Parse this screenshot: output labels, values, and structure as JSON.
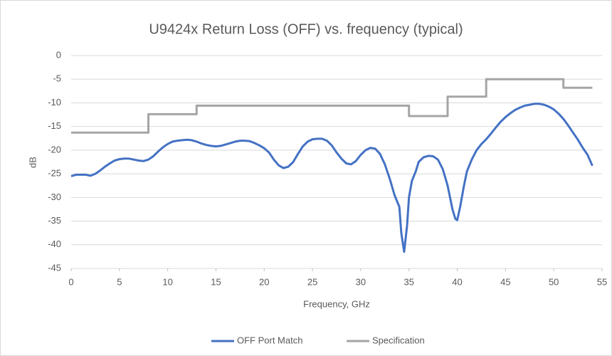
{
  "chart_data": {
    "type": "line",
    "title": "U9424x Return Loss (OFF) vs. frequency (typical)",
    "x_label": "Frequency, GHz",
    "y_label": "dB",
    "xlim": [
      0,
      55
    ],
    "xticks": [
      0,
      5,
      10,
      15,
      20,
      25,
      30,
      35,
      40,
      45,
      50,
      55
    ],
    "ylim": [
      -45,
      0
    ],
    "yticks": [
      0,
      -5,
      -10,
      -15,
      -20,
      -25,
      -30,
      -35,
      -40,
      -45
    ],
    "grid": true,
    "legend": "bottom",
    "series": [
      {
        "name": "OFF Port Match",
        "color": "#4472c4",
        "x": [
          0,
          0.5,
          1,
          1.5,
          2,
          2.5,
          3,
          3.5,
          4,
          4.5,
          5,
          5.5,
          6,
          6.5,
          7,
          7.5,
          8,
          8.5,
          9,
          9.5,
          10,
          10.5,
          11,
          11.5,
          12,
          12.5,
          13,
          13.5,
          14,
          14.5,
          15,
          15.5,
          16,
          16.5,
          17,
          17.5,
          18,
          18.5,
          19,
          19.5,
          20,
          20.5,
          21,
          21.5,
          22,
          22.5,
          23,
          23.5,
          24,
          24.5,
          25,
          25.5,
          26,
          26.5,
          27,
          27.5,
          28,
          28.5,
          29,
          29.5,
          30,
          30.5,
          31,
          31.5,
          32,
          32.5,
          33,
          33.5,
          34,
          34.2,
          34.5,
          34.8,
          35,
          35.3,
          35.7,
          36,
          36.5,
          37,
          37.5,
          38,
          38.5,
          39,
          39.5,
          39.8,
          40,
          40.3,
          40.7,
          41,
          41.5,
          42,
          42.5,
          43,
          43.5,
          44,
          44.5,
          45,
          45.5,
          46,
          46.5,
          47,
          47.5,
          48,
          48.5,
          49,
          49.5,
          50,
          50.5,
          51,
          51.5,
          52,
          52.5,
          53,
          53.5,
          54
        ],
        "values": [
          -25.5,
          -25.2,
          -25.2,
          -25.2,
          -25.4,
          -25.0,
          -24.3,
          -23.5,
          -22.8,
          -22.2,
          -21.9,
          -21.8,
          -21.8,
          -22.0,
          -22.2,
          -22.3,
          -22.0,
          -21.3,
          -20.3,
          -19.4,
          -18.7,
          -18.2,
          -18.0,
          -17.9,
          -17.8,
          -17.9,
          -18.2,
          -18.6,
          -18.9,
          -19.1,
          -19.2,
          -19.1,
          -18.8,
          -18.5,
          -18.2,
          -18.0,
          -18.0,
          -18.1,
          -18.5,
          -19.0,
          -19.6,
          -20.5,
          -22.0,
          -23.2,
          -23.8,
          -23.5,
          -22.5,
          -20.8,
          -19.2,
          -18.2,
          -17.7,
          -17.6,
          -17.6,
          -18.0,
          -19.0,
          -20.5,
          -21.8,
          -22.8,
          -23.0,
          -22.3,
          -21.0,
          -20.0,
          -19.5,
          -19.7,
          -20.8,
          -23.0,
          -26.0,
          -29.5,
          -32.0,
          -37.5,
          -41.5,
          -36,
          -30,
          -26.5,
          -24.5,
          -22.5,
          -21.5,
          -21.2,
          -21.3,
          -22.0,
          -24.0,
          -27.5,
          -32.5,
          -34.5,
          -34.8,
          -32,
          -27.5,
          -24.5,
          -22.0,
          -20.0,
          -18.7,
          -17.7,
          -16.5,
          -15.2,
          -14.0,
          -13.0,
          -12.2,
          -11.5,
          -11.0,
          -10.6,
          -10.4,
          -10.2,
          -10.2,
          -10.4,
          -10.8,
          -11.4,
          -12.3,
          -13.4,
          -14.8,
          -16.3,
          -17.8,
          -19.5,
          -21.0,
          -23.3
        ]
      },
      {
        "name": "Specification",
        "color": "#a5a5a5",
        "x": [
          0,
          8,
          8,
          13,
          13,
          35,
          35,
          39,
          39,
          43,
          43,
          51,
          51,
          54
        ],
        "values": [
          -16.3,
          -16.3,
          -12.4,
          -12.4,
          -10.6,
          -10.6,
          -12.8,
          -12.8,
          -8.7,
          -8.7,
          -5,
          -5,
          -6.8,
          -6.8
        ]
      }
    ]
  }
}
